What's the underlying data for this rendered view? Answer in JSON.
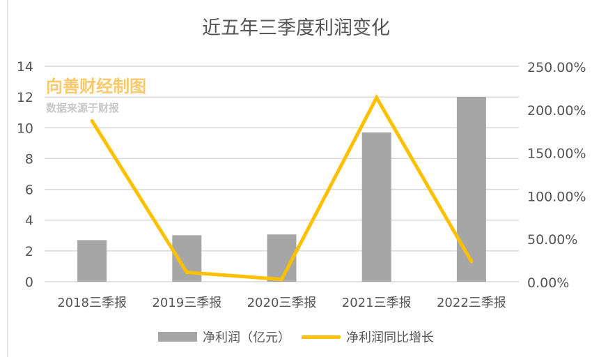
{
  "chart_data": {
    "type": "bar+line",
    "title": "近五年三季度利润变化",
    "categories": [
      "2018三季报",
      "2019三季报",
      "2020三季报",
      "2021三季报",
      "2022三季报"
    ],
    "series": [
      {
        "name": "净利润（亿元）",
        "type": "bar",
        "axis": "left",
        "color": "#a6a6a6",
        "values": [
          2.7,
          3.02,
          3.07,
          9.7,
          12.0
        ]
      },
      {
        "name": "净利润同比增长",
        "type": "line",
        "axis": "right",
        "color": "#ffc000",
        "values": [
          186.6,
          10.8,
          2.7,
          213.6,
          23.5
        ]
      }
    ],
    "left_axis": {
      "ylim": [
        0,
        14
      ],
      "ticks": [
        "0",
        "2",
        "4",
        "6",
        "8",
        "10",
        "12",
        "14"
      ]
    },
    "right_axis": {
      "ylim": [
        0,
        250
      ],
      "ticks": [
        "0.00%",
        "50.00%",
        "100.00%",
        "150.00%",
        "200.00%",
        "250.00%"
      ]
    },
    "grid": true,
    "legend": "bottom"
  },
  "watermark": {
    "brand": "向善财经制图",
    "source": "数据来源于财报"
  }
}
